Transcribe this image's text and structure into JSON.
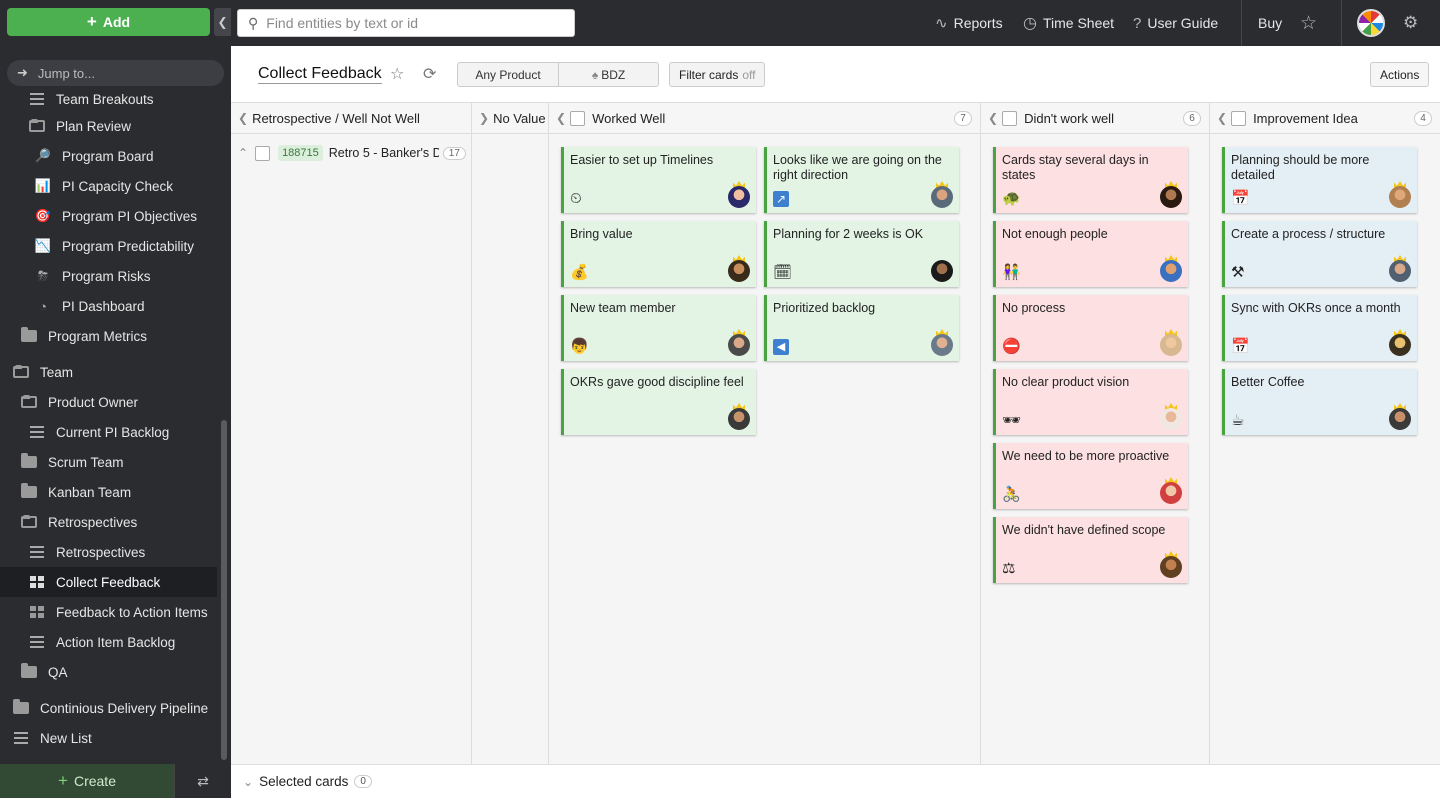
{
  "sidebar": {
    "add_label": "Add",
    "jump_placeholder": "Jump to...",
    "create_label": "Create",
    "items": [
      {
        "label": "Team Breakouts",
        "icon": "list-icon"
      },
      {
        "label": "Plan Review",
        "icon": "folder-open-icon"
      },
      {
        "label": "Program Board",
        "icon": "magnifier-icon"
      },
      {
        "label": "PI Capacity Check",
        "icon": "bar-chart-icon"
      },
      {
        "label": "Program PI Objectives",
        "icon": "target-icon"
      },
      {
        "label": "Program Predictability",
        "icon": "chart-down-icon"
      },
      {
        "label": "Program Risks",
        "icon": "storm-icon"
      },
      {
        "label": "PI Dashboard",
        "icon": "dashboard-icon"
      },
      {
        "label": "Program Metrics",
        "icon": "folder-icon"
      },
      {
        "label": "Team",
        "icon": "folder-open-icon"
      },
      {
        "label": "Product Owner",
        "icon": "folder-open-icon"
      },
      {
        "label": "Current PI Backlog",
        "icon": "list-icon"
      },
      {
        "label": "Scrum Team",
        "icon": "folder-icon"
      },
      {
        "label": "Kanban Team",
        "icon": "folder-icon"
      },
      {
        "label": "Retrospectives",
        "icon": "folder-open-icon"
      },
      {
        "label": "Retrospectives",
        "icon": "list-icon"
      },
      {
        "label": "Collect Feedback",
        "icon": "board-icon"
      },
      {
        "label": "Feedback to Action Items",
        "icon": "board-icon"
      },
      {
        "label": "Action Item Backlog",
        "icon": "list-icon"
      },
      {
        "label": "QA",
        "icon": "folder-icon"
      },
      {
        "label": "Continious Delivery Pipeline",
        "icon": "folder-icon"
      },
      {
        "label": "New List",
        "icon": "list-lock-icon"
      }
    ]
  },
  "topbar": {
    "search_placeholder": "Find entities by text or id",
    "reports": "Reports",
    "timesheet": "Time Sheet",
    "userguide": "User Guide",
    "buy": "Buy"
  },
  "header": {
    "title": "Collect Feedback",
    "any_product": "Any Product",
    "bdz": "BDZ",
    "filter_label": "Filter cards",
    "filter_state": "off",
    "actions": "Actions"
  },
  "columns": {
    "retro": {
      "title": "Retrospective / Well Not Well"
    },
    "novalue": {
      "title": "No Value"
    },
    "worked": {
      "title": "Worked Well",
      "count": "7"
    },
    "didnt": {
      "title": "Didn't work well",
      "count": "6"
    },
    "improve": {
      "title": "Improvement Idea",
      "count": "4"
    }
  },
  "swimlane": {
    "id": "188715",
    "title": "Retro 5 - Banker's D",
    "count": "17"
  },
  "cards": {
    "worked": [
      {
        "title": "Easier to set up Timelines",
        "icon": "⏲"
      },
      {
        "title": "Looks like we are going on the right direction",
        "icon": "↗"
      },
      {
        "title": "Bring value",
        "icon": "💰"
      },
      {
        "title": "Planning for 2 weeks is OK",
        "icon": "🗓"
      },
      {
        "title": "New team member",
        "icon": "👦"
      },
      {
        "title": "Prioritized backlog",
        "icon": "◀"
      },
      {
        "title": "OKRs gave good discipline feel",
        "icon": ""
      }
    ],
    "didnt": [
      {
        "title": "Cards stay several days in states",
        "icon": "🐢"
      },
      {
        "title": "Not enough people",
        "icon": "👫"
      },
      {
        "title": "No process",
        "icon": "⛔"
      },
      {
        "title": "No clear product vision",
        "icon": "🕶"
      },
      {
        "title": "We need to be more proactive",
        "icon": "🚴"
      },
      {
        "title": "We didn't have defined scope",
        "icon": "⚖"
      }
    ],
    "improve": [
      {
        "title": "Planning should be more detailed",
        "icon": "📅"
      },
      {
        "title": "Create a process / structure",
        "icon": "⚒"
      },
      {
        "title": "Sync with OKRs once a month",
        "icon": "📅"
      },
      {
        "title": "Better Coffee",
        "icon": "☕"
      }
    ]
  },
  "bottom": {
    "label": "Selected cards",
    "count": "0"
  },
  "colors": {
    "accent_green": "#4caf50",
    "card_green": "#e3f4e4",
    "card_red": "#fde0e1",
    "card_blue": "#e4eef5",
    "sidebar_bg": "#2b2c30"
  }
}
